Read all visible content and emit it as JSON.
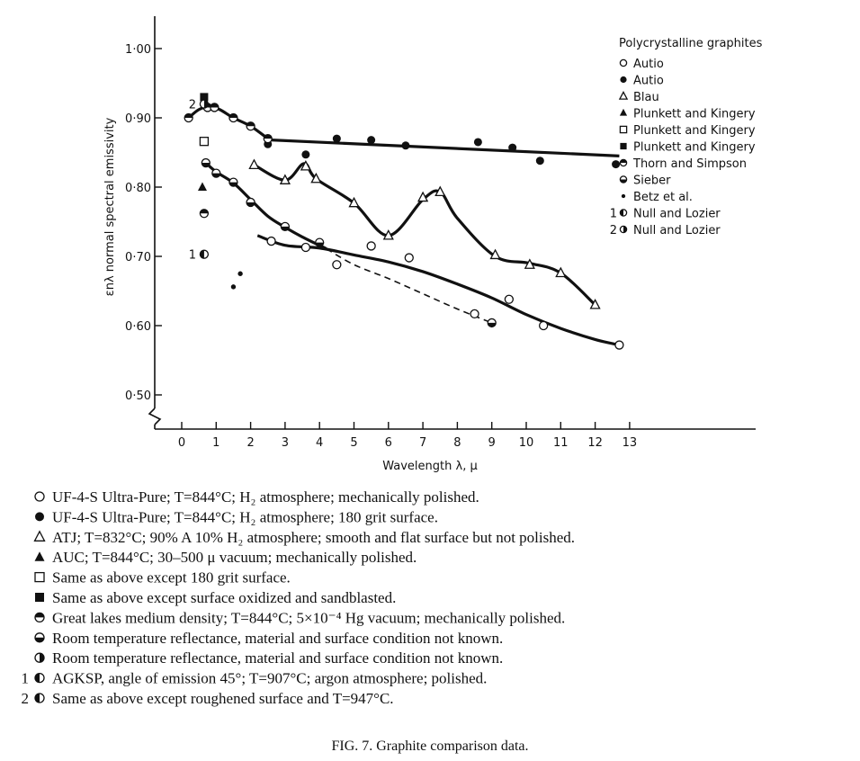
{
  "chart_data": {
    "type": "scatter",
    "title": "",
    "xlabel": "Wavelength  λ,   μ",
    "ylabel": "εnλ  normal spectral emissivity",
    "xlim": [
      -0.3,
      13.8
    ],
    "ylim": [
      0.47,
      1.03
    ],
    "x_ticks": [
      "0",
      "1",
      "2",
      "3",
      "4",
      "5",
      "6",
      "7",
      "8",
      "9",
      "10",
      "11",
      "12",
      "13"
    ],
    "y_ticks": [
      "0·50",
      "0·60",
      "0·70",
      "0·80",
      "0·90",
      "1·00"
    ],
    "y_tick_values": [
      0.5,
      0.6,
      0.7,
      0.8,
      0.9,
      1.0
    ],
    "y_axis_break": true,
    "legend_title": "Polycrystalline graphites",
    "legend_position": "top-right",
    "legend": [
      {
        "symbol": "open-circle",
        "label": "Autio"
      },
      {
        "symbol": "filled-circle",
        "label": "Autio"
      },
      {
        "symbol": "open-triangle",
        "label": "Blau"
      },
      {
        "symbol": "filled-triangle",
        "label": "Plunkett and Kingery"
      },
      {
        "symbol": "open-square",
        "label": "Plunkett and Kingery"
      },
      {
        "symbol": "filled-square",
        "label": "Plunkett and Kingery"
      },
      {
        "symbol": "top-filled-circle",
        "label": "Thorn and Simpson"
      },
      {
        "symbol": "bottom-filled-circle",
        "label": "Sieber"
      },
      {
        "symbol": "small-filled-circle",
        "label": "Betz et al."
      },
      {
        "symbol": "left-filled-circle",
        "prefix": "1",
        "label": "Null and Lozier"
      },
      {
        "symbol": "right-filled-circle",
        "prefix": "2",
        "label": "Null and Lozier"
      }
    ],
    "series": [
      {
        "symbol": "open-circle",
        "x": [
          2.6,
          3.6,
          4.5,
          5.5,
          6.6,
          8.5,
          9.5,
          10.5,
          12.7
        ],
        "y": [
          0.722,
          0.713,
          0.688,
          0.715,
          0.698,
          0.617,
          0.638,
          0.6,
          0.572
        ]
      },
      {
        "symbol": "filled-circle",
        "x": [
          2.5,
          3.6,
          4.5,
          5.5,
          6.5,
          8.6,
          9.6,
          10.4,
          12.6
        ],
        "y": [
          0.862,
          0.847,
          0.87,
          0.868,
          0.86,
          0.865,
          0.857,
          0.838,
          0.833
        ]
      },
      {
        "symbol": "open-triangle",
        "x": [
          2.1,
          3.0,
          3.6,
          3.9,
          5.0,
          6.0,
          7.0,
          7.5,
          9.1,
          10.1,
          11.0,
          12.0
        ],
        "y": [
          0.832,
          0.81,
          0.83,
          0.812,
          0.777,
          0.73,
          0.785,
          0.793,
          0.702,
          0.688,
          0.676,
          0.63
        ]
      },
      {
        "symbol": "filled-triangle",
        "x": [
          0.6
        ],
        "y": [
          0.8
        ]
      },
      {
        "symbol": "open-square",
        "x": [
          0.65
        ],
        "y": [
          0.866
        ]
      },
      {
        "symbol": "filled-square",
        "x": [
          0.65
        ],
        "y": [
          0.93
        ]
      },
      {
        "symbol": "top-filled-circle",
        "x": [
          0.2,
          0.75,
          0.95,
          1.5,
          2.0,
          2.5
        ],
        "y": [
          0.9,
          0.915,
          0.915,
          0.9,
          0.888,
          0.87
        ]
      },
      {
        "symbol": "bottom-filled-circle",
        "x": [
          0.7,
          1.0,
          1.5,
          2.0,
          3.0,
          4.0,
          9.0
        ],
        "y": [
          0.835,
          0.82,
          0.807,
          0.778,
          0.743,
          0.72,
          0.604
        ]
      },
      {
        "symbol": "small-filled-circle",
        "x": [
          1.5,
          1.7
        ],
        "y": [
          0.656,
          0.675
        ]
      },
      {
        "symbol": "left-filled-circle",
        "label": "1",
        "x": [
          0.65
        ],
        "y": [
          0.703
        ]
      },
      {
        "symbol": "right-filled-circle",
        "label": "2",
        "x": [
          0.65
        ],
        "y": [
          0.92
        ]
      },
      {
        "symbol": "top-filled-circle",
        "x": [
          0.65
        ],
        "y": [
          0.762
        ]
      }
    ],
    "curves": [
      {
        "style": "solid",
        "description": "Autio 180 grit",
        "x": [
          2.6,
          12.7
        ],
        "y": [
          0.868,
          0.845
        ]
      },
      {
        "style": "solid",
        "description": "Blau",
        "x": [
          2.1,
          3.0,
          3.55,
          3.9,
          5.0,
          6.0,
          7.0,
          7.5,
          8.0,
          9.1,
          10.1,
          11.0,
          12.0
        ],
        "y": [
          0.832,
          0.81,
          0.834,
          0.812,
          0.777,
          0.73,
          0.782,
          0.793,
          0.755,
          0.7,
          0.69,
          0.676,
          0.63
        ]
      },
      {
        "style": "solid",
        "description": "Thorn and Simpson",
        "x": [
          0.2,
          0.5,
          0.8,
          1.1,
          1.5,
          2.0,
          2.5
        ],
        "y": [
          0.9,
          0.912,
          0.916,
          0.912,
          0.9,
          0.888,
          0.87
        ]
      },
      {
        "style": "solid",
        "description": "Sieber upper",
        "x": [
          0.7,
          1.0,
          1.5,
          2.0,
          2.5,
          3.0,
          3.5,
          4.2
        ],
        "y": [
          0.835,
          0.822,
          0.806,
          0.782,
          0.758,
          0.742,
          0.728,
          0.711
        ]
      },
      {
        "style": "dashed",
        "description": "Sieber dashed",
        "x": [
          4.2,
          5.0,
          6.0,
          7.0,
          8.0,
          9.0
        ],
        "y": [
          0.711,
          0.688,
          0.668,
          0.646,
          0.624,
          0.604
        ]
      },
      {
        "style": "solid",
        "description": "Autio polished",
        "x": [
          2.2,
          3.0,
          4.0,
          5.0,
          6.0,
          7.0,
          8.0,
          9.0,
          10.0,
          11.0,
          12.0,
          12.7
        ],
        "y": [
          0.73,
          0.716,
          0.712,
          0.702,
          0.692,
          0.678,
          0.66,
          0.64,
          0.616,
          0.596,
          0.58,
          0.572
        ]
      }
    ]
  },
  "caption_lines": [
    {
      "prefix": "",
      "symbol": "open-circle",
      "text": "UF-4-S Ultra-Pure; T=844°C; H₂ atmosphere; mechanically polished."
    },
    {
      "prefix": "",
      "symbol": "filled-circle",
      "text": "UF-4-S Ultra-Pure; T=844°C; H₂ atmosphere; 180 grit surface."
    },
    {
      "prefix": "",
      "symbol": "open-triangle",
      "text": "ATJ; T=832°C; 90% A 10% H₂ atmosphere; smooth and flat surface but not polished."
    },
    {
      "prefix": "",
      "symbol": "filled-triangle",
      "text": "AUC; T=844°C; 30–500 μ vacuum; mechanically polished."
    },
    {
      "prefix": "",
      "symbol": "open-square",
      "text": "Same as above except 180 grit surface."
    },
    {
      "prefix": "",
      "symbol": "filled-square",
      "text": "Same as above except surface oxidized and sandblasted."
    },
    {
      "prefix": "",
      "symbol": "top-filled-circle",
      "text": "Great lakes medium density; T=844°C; 5×10⁻⁴ Hg vacuum; mechanically polished."
    },
    {
      "prefix": "",
      "symbol": "bottom-filled-circle",
      "text": "Room temperature reflectance, material and surface condition not known."
    },
    {
      "prefix": "",
      "symbol": "right-filled-circle",
      "text": "Room temperature reflectance, material and surface condition not known."
    },
    {
      "prefix": "1",
      "symbol": "left-filled-circle",
      "text": "AGKSP, angle of emission 45°; T=907°C; argon atmosphere; polished."
    },
    {
      "prefix": "2",
      "symbol": "left-filled-circle",
      "text": "Same as above except roughened surface and T=947°C."
    }
  ],
  "figure_caption": "FIG. 7. Graphite comparison data."
}
